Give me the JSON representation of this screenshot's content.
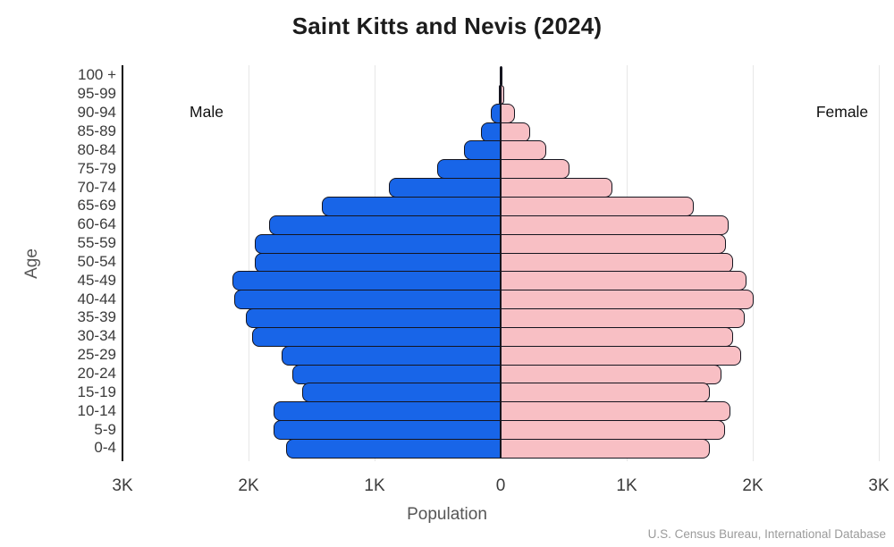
{
  "title": "Saint Kitts and Nevis (2024)",
  "side_labels": {
    "male": "Male",
    "female": "Female"
  },
  "axis": {
    "y_title": "Age",
    "x_title": "Population",
    "x_tick_labels": [
      "3K",
      "2K",
      "1K",
      "0",
      "1K",
      "2K",
      "3K"
    ],
    "x_tick_values": [
      -3000,
      -2000,
      -1000,
      0,
      1000,
      2000,
      3000
    ]
  },
  "source": "U.S. Census Bureau, International Database",
  "colors": {
    "male_fill": "#1865e8",
    "female_fill": "#f8bfc4",
    "bar_border": "#15151f",
    "gridline": "#e7e7e7",
    "axis_line": "#0c0c0c"
  },
  "chart_data": {
    "type": "bar",
    "subtype": "population-pyramid",
    "title": "Saint Kitts and Nevis (2024)",
    "xlabel": "Population",
    "ylabel": "Age",
    "xlim_each_side": [
      0,
      3000
    ],
    "grid": true,
    "legend_position": "in-plot-top-corners",
    "categories": [
      "100 +",
      "95-99",
      "90-94",
      "85-89",
      "80-84",
      "75-79",
      "70-74",
      "65-69",
      "60-64",
      "55-59",
      "50-54",
      "45-49",
      "40-44",
      "35-39",
      "30-34",
      "25-29",
      "20-24",
      "15-19",
      "10-14",
      "5-9",
      "0-4"
    ],
    "series": [
      {
        "name": "Male",
        "values": [
          5,
          15,
          75,
          155,
          290,
          505,
          890,
          1415,
          1835,
          1950,
          1950,
          2130,
          2110,
          2020,
          1975,
          1740,
          1655,
          1575,
          1800,
          1800,
          1700
        ]
      },
      {
        "name": "Female",
        "values": [
          5,
          25,
          110,
          235,
          365,
          545,
          890,
          1530,
          1810,
          1790,
          1845,
          1950,
          2010,
          1935,
          1845,
          1905,
          1750,
          1660,
          1825,
          1780,
          1660
        ]
      }
    ]
  }
}
